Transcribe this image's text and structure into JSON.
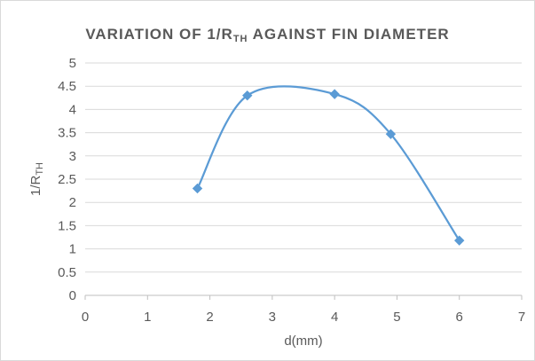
{
  "chart_data": {
    "type": "scatter",
    "title": {
      "main": "VARIATION OF 1/R",
      "sub": "TH",
      "rest": " AGAINST FIN DIAMETER"
    },
    "xlabel": "d(mm)",
    "ylabel": {
      "main": "1/R",
      "sub": "TH"
    },
    "xlim": [
      0,
      7
    ],
    "ylim": [
      0,
      5
    ],
    "x_ticks": [
      "0",
      "1",
      "2",
      "3",
      "4",
      "5",
      "6",
      "7"
    ],
    "y_ticks": [
      "0",
      "0.5",
      "1",
      "1.5",
      "2",
      "2.5",
      "3",
      "3.5",
      "4",
      "4.5",
      "5"
    ],
    "grid": "horizontal",
    "smooth": true,
    "series_color": "#5b9bd5",
    "x": [
      1.8,
      2.6,
      4.0,
      4.9,
      6.0
    ],
    "y": [
      2.3,
      4.3,
      4.33,
      3.47,
      1.18
    ]
  }
}
